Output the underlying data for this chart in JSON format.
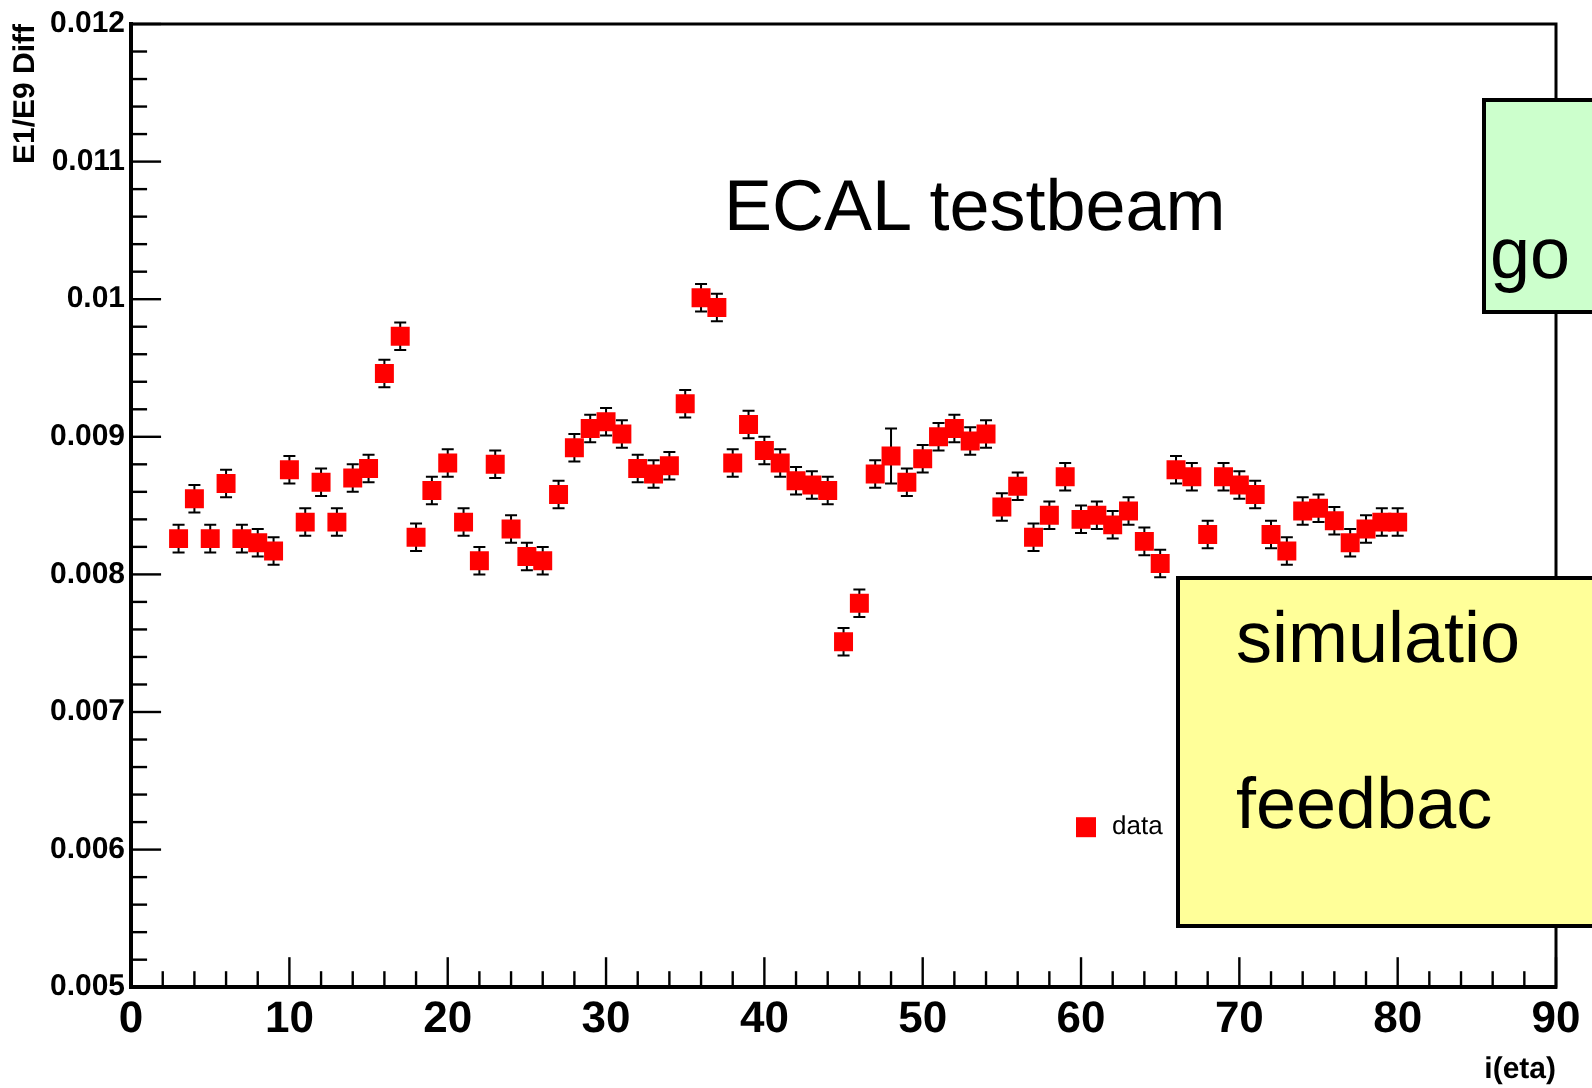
{
  "chart_data": {
    "type": "scatter",
    "xlabel": "i(eta)",
    "ylabel": "E1/E9 Diff",
    "marker": "square",
    "legend": "bottom right",
    "grid": false,
    "annotations": [
      "ECAL testbeam",
      "go",
      "simulatio\n\nfeedbac"
    ],
    "xlim": [
      0,
      90
    ],
    "ylim": [
      0.005,
      0.012
    ],
    "xticks": [
      0,
      {
        "value": 2,
        "label": null
      },
      {
        "value": 4,
        "label": null
      },
      {
        "value": 6,
        "label": null
      },
      {
        "value": 8,
        "label": null
      },
      10,
      {
        "value": 12,
        "label": null
      },
      {
        "value": 14,
        "label": null
      },
      {
        "value": 16,
        "label": null
      },
      {
        "value": 18,
        "label": null
      },
      20,
      {
        "value": 22,
        "label": null
      },
      {
        "value": 24,
        "label": null
      },
      {
        "value": 26,
        "label": null
      },
      {
        "value": 28,
        "label": null
      },
      30,
      {
        "value": 32,
        "label": null
      },
      {
        "value": 34,
        "label": null
      },
      {
        "value": 36,
        "label": null
      },
      {
        "value": 38,
        "label": null
      },
      40,
      {
        "value": 42,
        "label": null
      },
      {
        "value": 44,
        "label": null
      },
      {
        "value": 46,
        "label": null
      },
      {
        "value": 48,
        "label": null
      },
      50,
      {
        "value": 52,
        "label": null
      },
      {
        "value": 54,
        "label": null
      },
      {
        "value": 56,
        "label": null
      },
      {
        "value": 58,
        "label": null
      },
      60,
      {
        "value": 62,
        "label": null
      },
      {
        "value": 64,
        "label": null
      },
      {
        "value": 66,
        "label": null
      },
      {
        "value": 68,
        "label": null
      },
      70,
      {
        "value": 72,
        "label": null
      },
      {
        "value": 74,
        "label": null
      },
      {
        "value": 76,
        "label": null
      },
      {
        "value": 78,
        "label": null
      },
      80,
      {
        "value": 82,
        "label": null
      },
      {
        "value": 84,
        "label": null
      },
      {
        "value": 86,
        "label": null
      },
      {
        "value": 88,
        "label": null
      },
      90
    ],
    "yticks": [
      0.005,
      {
        "value": 0.0052,
        "label": null
      },
      {
        "value": 0.0054,
        "label": null
      },
      {
        "value": 0.0056,
        "label": null
      },
      {
        "value": 0.0058,
        "label": null
      },
      0.006,
      {
        "value": 0.0062,
        "label": null
      },
      {
        "value": 0.0064,
        "label": null
      },
      {
        "value": 0.0066,
        "label": null
      },
      {
        "value": 0.0068,
        "label": null
      },
      0.007,
      {
        "value": 0.0072,
        "label": null
      },
      {
        "value": 0.0074,
        "label": null
      },
      {
        "value": 0.0076,
        "label": null
      },
      {
        "value": 0.0078,
        "label": null
      },
      0.008,
      {
        "value": 0.0082,
        "label": null
      },
      {
        "value": 0.0084,
        "label": null
      },
      {
        "value": 0.0086,
        "label": null
      },
      {
        "value": 0.0088,
        "label": null
      },
      0.009,
      {
        "value": 0.0092,
        "label": null
      },
      {
        "value": 0.0094,
        "label": null
      },
      {
        "value": 0.0096,
        "label": null
      },
      {
        "value": 0.0098,
        "label": null
      },
      0.01,
      {
        "value": 0.0102,
        "label": null
      },
      {
        "value": 0.0104,
        "label": null
      },
      {
        "value": 0.0106,
        "label": null
      },
      {
        "value": 0.0108,
        "label": null
      },
      0.011,
      {
        "value": 0.0112,
        "label": null
      },
      {
        "value": 0.0114,
        "label": null
      },
      {
        "value": 0.0116,
        "label": null
      },
      {
        "value": 0.0118,
        "label": null
      },
      0.012
    ],
    "series": [
      {
        "name": "data",
        "color": "#ff0000",
        "x": [
          3,
          4,
          5,
          6,
          7,
          8,
          9,
          10,
          11,
          12,
          13,
          14,
          15,
          16,
          17,
          18,
          19,
          20,
          21,
          22,
          23,
          24,
          25,
          26,
          27,
          28,
          29,
          30,
          31,
          32,
          33,
          34,
          35,
          36,
          37,
          38,
          39,
          40,
          41,
          42,
          43,
          44,
          45,
          46,
          47,
          48,
          49,
          50,
          51,
          52,
          53,
          54,
          55,
          56,
          57,
          58,
          59,
          60,
          61,
          62,
          63,
          64,
          65,
          66,
          67,
          68,
          69,
          70,
          71,
          72,
          73,
          74,
          75,
          76,
          77,
          78,
          79,
          80
        ],
        "values": [
          0.00826,
          0.00855,
          0.00826,
          0.00866,
          0.00826,
          0.00823,
          0.00817,
          0.00876,
          0.00838,
          0.00867,
          0.00838,
          0.0087,
          0.00877,
          0.00946,
          0.00973,
          0.00827,
          0.00861,
          0.00881,
          0.00838,
          0.0081,
          0.0088,
          0.00833,
          0.00813,
          0.0081,
          0.00858,
          0.00892,
          0.00906,
          0.00911,
          0.00902,
          0.00877,
          0.00873,
          0.00879,
          0.00924,
          0.01001,
          0.00994,
          0.00881,
          0.00909,
          0.0089,
          0.00881,
          0.00868,
          0.00865,
          0.00861,
          0.00751,
          0.00779,
          0.00873,
          0.00886,
          0.00867,
          0.00884,
          0.009,
          0.00906,
          0.00897,
          0.00902,
          0.00849,
          0.00864,
          0.00827,
          0.00843,
          0.00871,
          0.0084,
          0.00843,
          0.00836,
          0.00846,
          0.00824,
          0.00808,
          0.00876,
          0.00871,
          0.00829,
          0.00871,
          0.00865,
          0.00858,
          0.00829,
          0.00817,
          0.00846,
          0.00848,
          0.00839,
          0.00823,
          0.00833,
          0.00838,
          0.00838
        ],
        "errors": [
          0.0001,
          0.0001,
          0.0001,
          0.0001,
          0.0001,
          0.0001,
          0.0001,
          0.0001,
          0.0001,
          0.0001,
          0.0001,
          0.0001,
          0.0001,
          0.0001,
          0.0001,
          0.0001,
          0.0001,
          0.0001,
          0.0001,
          0.0001,
          0.0001,
          0.0001,
          0.0001,
          0.0001,
          0.0001,
          0.0001,
          0.0001,
          0.0001,
          0.0001,
          0.0001,
          0.0001,
          0.0001,
          0.0001,
          0.0001,
          0.0001,
          0.0001,
          0.0001,
          0.0001,
          0.0001,
          0.0001,
          0.0001,
          0.0001,
          0.0001,
          0.0001,
          0.0001,
          0.0002,
          0.0001,
          0.0001,
          0.0001,
          0.0001,
          0.0001,
          0.0001,
          0.0001,
          0.0001,
          0.0001,
          0.0001,
          0.0001,
          0.0001,
          0.0001,
          0.0001,
          0.0001,
          0.0001,
          0.0001,
          0.0001,
          0.0001,
          0.0001,
          0.0001,
          0.0001,
          0.0001,
          0.0001,
          0.0001,
          0.0001,
          0.0001,
          0.0001,
          0.0001,
          0.0001,
          0.0001,
          0.0001
        ]
      }
    ]
  }
}
